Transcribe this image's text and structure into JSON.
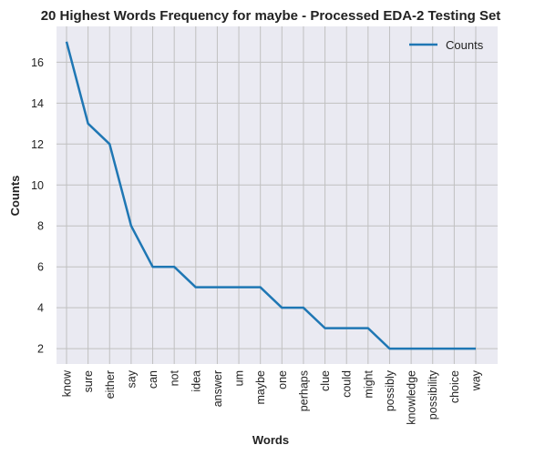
{
  "chart_data": {
    "type": "line",
    "title": "20 Highest Words Frequency for maybe - Processed EDA-2 Testing Set",
    "xlabel": "Words",
    "ylabel": "Counts",
    "categories": [
      "know",
      "sure",
      "either",
      "say",
      "can",
      "not",
      "idea",
      "answer",
      "um",
      "maybe",
      "one",
      "perhaps",
      "clue",
      "could",
      "might",
      "possibly",
      "knowledge",
      "possibility",
      "choice",
      "way"
    ],
    "series": [
      {
        "name": "Counts",
        "values": [
          17,
          13,
          12,
          8,
          6,
          6,
          5,
          5,
          5,
          5,
          4,
          4,
          3,
          3,
          3,
          2,
          2,
          2,
          2,
          2
        ],
        "color": "#1f77b4"
      }
    ],
    "yticks": [
      2,
      4,
      6,
      8,
      10,
      12,
      14,
      16
    ],
    "ylim": [
      1.25,
      17.75
    ],
    "grid": true,
    "legend": "top-right",
    "colors": {
      "background": "#eaeaf2",
      "grid": "#c0c0c0",
      "line": "#1f77b4"
    }
  }
}
